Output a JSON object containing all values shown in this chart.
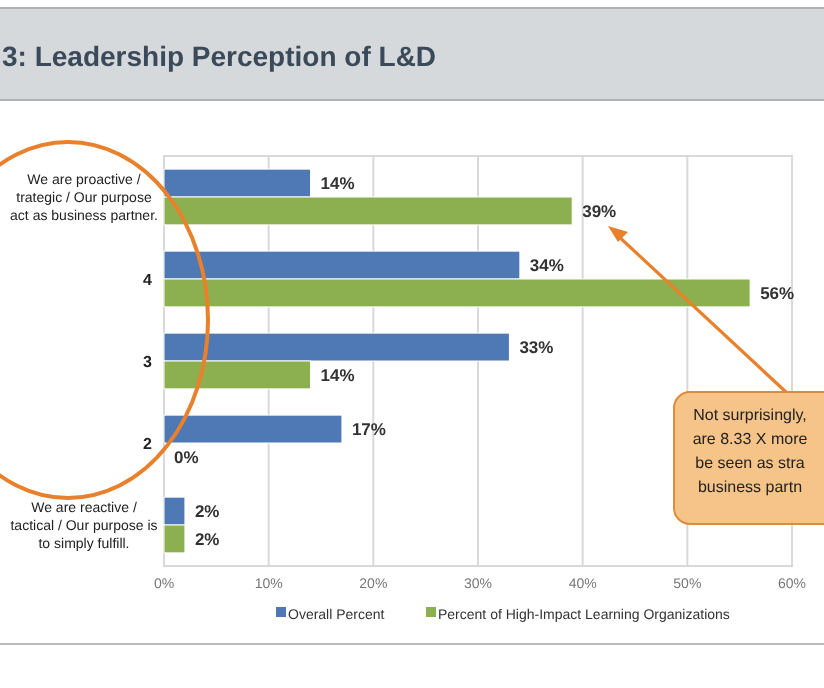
{
  "chart_data": {
    "type": "bar",
    "orientation": "horizontal",
    "title": "3: Leadership Perception of L&D",
    "categories": [
      "We are proactive /\ntrategic / Our purpose\nact as business partner.",
      "4",
      "3",
      "2",
      "We are reactive /\ntactical / Our purpose is\nto simply fulfill."
    ],
    "series": [
      {
        "name": "Overall Percent",
        "color": "#4f79b5",
        "values": [
          14,
          34,
          33,
          17,
          2
        ]
      },
      {
        "name": "Percent of High-Impact Learning Organizations",
        "color": "#8cb050",
        "values": [
          39,
          56,
          14,
          0,
          2
        ]
      }
    ],
    "value_labels": [
      [
        "14%",
        "34%",
        "33%",
        "17%",
        "2%"
      ],
      [
        "39%",
        "56%",
        "14%",
        "0%",
        "2%"
      ]
    ],
    "xlim": [
      0,
      60
    ],
    "xticks": [
      {
        "value": 0,
        "label": "0%"
      },
      {
        "value": 10,
        "label": "10%"
      },
      {
        "value": 20,
        "label": "20%"
      },
      {
        "value": 30,
        "label": "30%"
      },
      {
        "value": 40,
        "label": "40%"
      },
      {
        "value": 50,
        "label": "50%"
      },
      {
        "value": 60,
        "label": "60%"
      }
    ],
    "grid": "x",
    "legend": "bottom",
    "annotations": [
      "Not surprisingly,\nare 8.33 X more\nbe seen as stra\nbusiness partn"
    ]
  }
}
